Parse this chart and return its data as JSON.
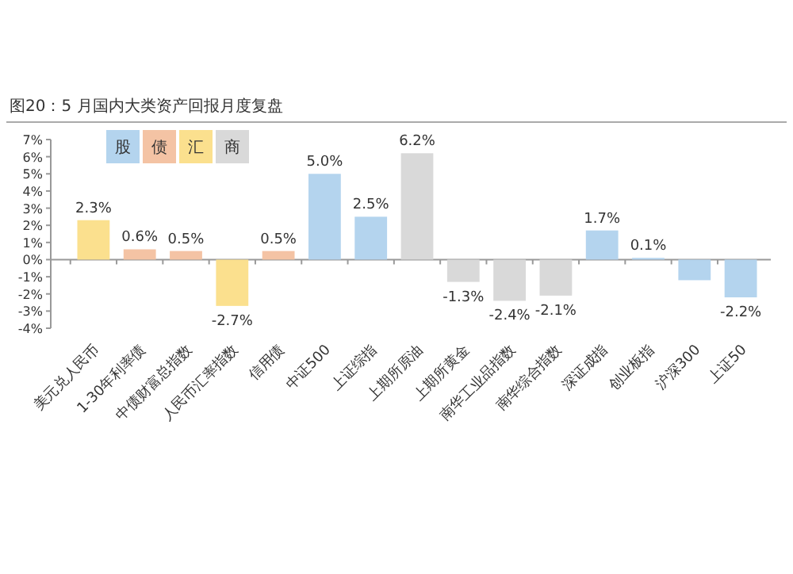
{
  "chart_data": {
    "type": "bar",
    "title": "图20：5 月国内大类资产回报月度复盘",
    "categories": [
      "美元兑人民币",
      "1-30年利率债",
      "中债财富总指数",
      "人民币汇率指数",
      "信用债",
      "中证500",
      "上证综指",
      "上期所原油",
      "上期所黄金",
      "南华工业品指数",
      "南华综合指数",
      "深证成指",
      "创业板指",
      "沪深300",
      "上证50"
    ],
    "series": [
      {
        "name": "股",
        "color": "#b4d4ee",
        "values": [
          null,
          null,
          null,
          null,
          null,
          5.0,
          2.5,
          null,
          null,
          null,
          null,
          1.7,
          0.1,
          -1.2,
          -2.2
        ],
        "value_labels": [
          null,
          null,
          null,
          null,
          null,
          "5.0%",
          "2.5%",
          null,
          null,
          null,
          null,
          "1.7%",
          "0.1%",
          null,
          "-2.2%"
        ]
      },
      {
        "name": "债",
        "color": "#f4c3a4",
        "values": [
          null,
          0.6,
          0.5,
          null,
          0.5,
          null,
          null,
          null,
          null,
          null,
          null,
          null,
          null,
          null,
          null
        ],
        "value_labels": [
          null,
          "0.6%",
          "0.5%",
          null,
          "0.5%",
          null,
          null,
          null,
          null,
          null,
          null,
          null,
          null,
          null,
          null
        ]
      },
      {
        "name": "汇",
        "color": "#fbe08e",
        "values": [
          2.3,
          null,
          null,
          -2.7,
          null,
          null,
          null,
          null,
          null,
          null,
          null,
          null,
          null,
          null,
          null
        ],
        "value_labels": [
          "2.3%",
          null,
          null,
          "-2.7%",
          null,
          null,
          null,
          null,
          null,
          null,
          null,
          null,
          null,
          null,
          null
        ]
      },
      {
        "name": "商",
        "color": "#d9d9d9",
        "values": [
          null,
          null,
          null,
          null,
          null,
          null,
          null,
          6.2,
          -1.3,
          -2.4,
          -2.1,
          null,
          null,
          null,
          null
        ],
        "value_labels": [
          null,
          null,
          null,
          null,
          null,
          null,
          null,
          "6.2%",
          "-1.3%",
          "-2.4%",
          "-2.1%",
          null,
          null,
          null,
          null
        ]
      }
    ],
    "ylim": [
      -4,
      7
    ],
    "yticks": [
      {
        "value": -4,
        "label": "-4%"
      },
      {
        "value": -3,
        "label": "-3%"
      },
      {
        "value": -2,
        "label": "-2%"
      },
      {
        "value": -1,
        "label": "-1%"
      },
      {
        "value": 0,
        "label": "0%"
      },
      {
        "value": 1,
        "label": "1%"
      },
      {
        "value": 2,
        "label": "2%"
      },
      {
        "value": 3,
        "label": "3%"
      },
      {
        "value": 4,
        "label": "4%"
      },
      {
        "value": 5,
        "label": "5%"
      },
      {
        "value": 6,
        "label": "6%"
      },
      {
        "value": 7,
        "label": "7%"
      }
    ],
    "legend": "top left"
  }
}
